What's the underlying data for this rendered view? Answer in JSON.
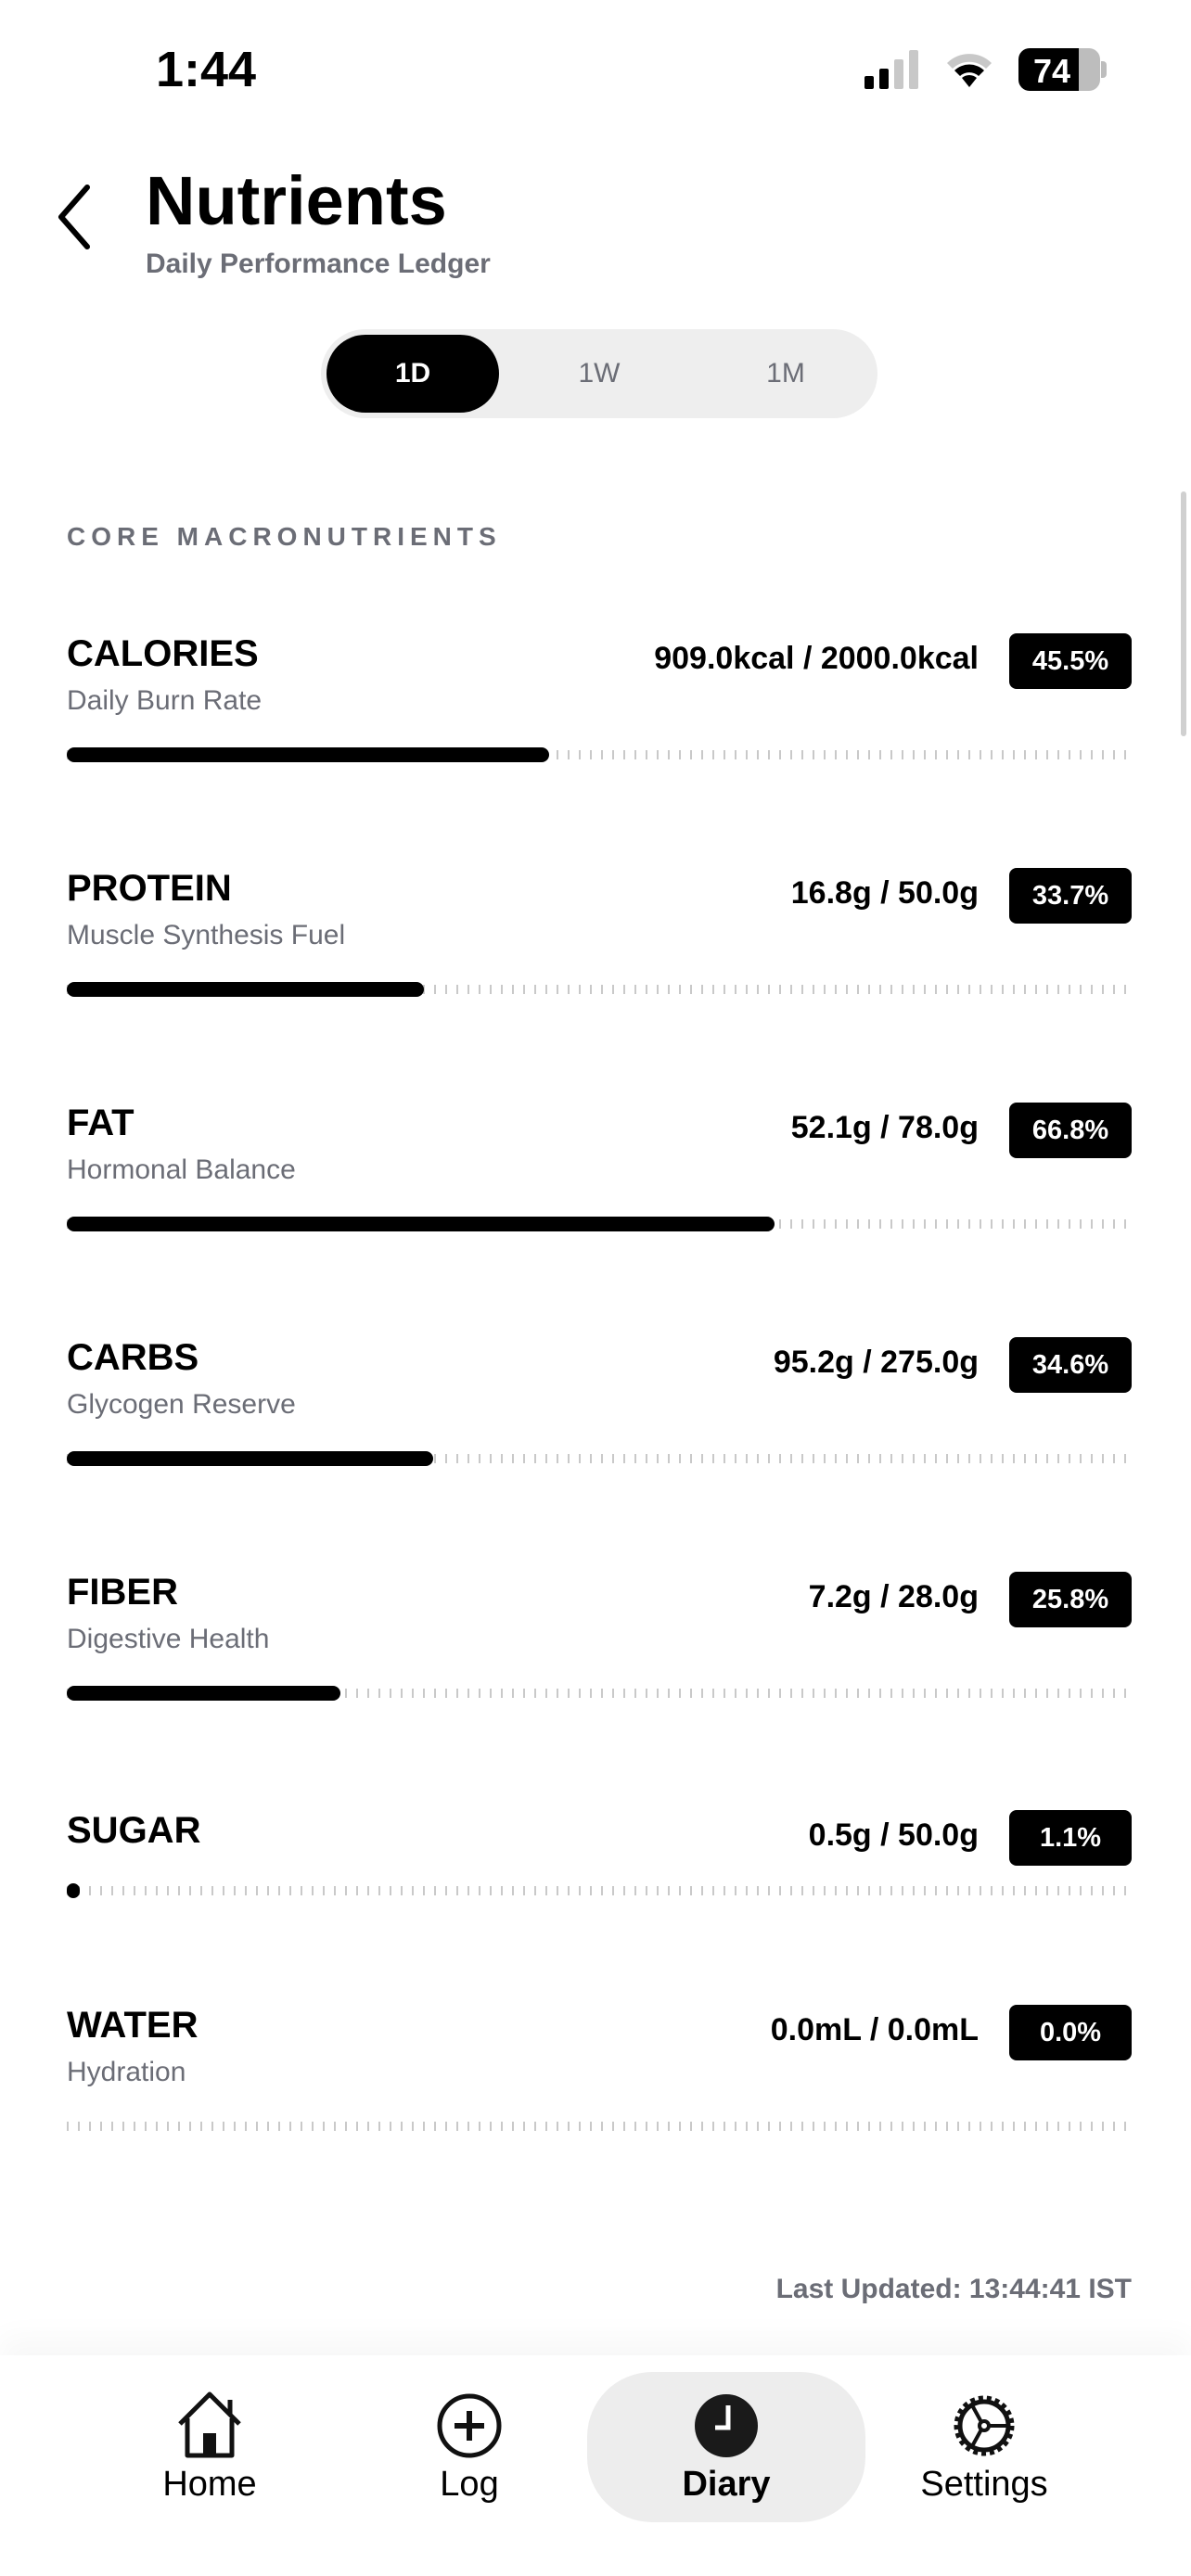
{
  "status_bar": {
    "time": "1:44",
    "battery": "74"
  },
  "header": {
    "title": "Nutrients",
    "subtitle": "Daily Performance Ledger"
  },
  "range_tabs": [
    {
      "label": "1D",
      "active": true
    },
    {
      "label": "1W",
      "active": false
    },
    {
      "label": "1M",
      "active": false
    }
  ],
  "section_title": "CORE MACRONUTRIENTS",
  "nutrients": [
    {
      "name": "CALORIES",
      "desc": "Daily Burn Rate",
      "value": "909.0kcal / 2000.0kcal",
      "percent_label": "45.5%",
      "percent": 45.5
    },
    {
      "name": "PROTEIN",
      "desc": "Muscle Synthesis Fuel",
      "value": "16.8g / 50.0g",
      "percent_label": "33.7%",
      "percent": 33.7
    },
    {
      "name": "FAT",
      "desc": "Hormonal Balance",
      "value": "52.1g / 78.0g",
      "percent_label": "66.8%",
      "percent": 66.8
    },
    {
      "name": "CARBS",
      "desc": "Glycogen Reserve",
      "value": "95.2g / 275.0g",
      "percent_label": "34.6%",
      "percent": 34.6
    },
    {
      "name": "FIBER",
      "desc": "Digestive Health",
      "value": "7.2g / 28.0g",
      "percent_label": "25.8%",
      "percent": 25.8
    },
    {
      "name": "SUGAR",
      "desc": "",
      "value": "0.5g / 50.0g",
      "percent_label": "1.1%",
      "percent": 1.1
    },
    {
      "name": "WATER",
      "desc": "Hydration",
      "value": "0.0mL / 0.0mL",
      "percent_label": "0.0%",
      "percent": 0
    }
  ],
  "last_updated": "Last Updated: 13:44:41 IST",
  "nav": [
    {
      "label": "Home",
      "icon": "home-icon",
      "active": false
    },
    {
      "label": "Log",
      "icon": "plus-circle-icon",
      "active": false
    },
    {
      "label": "Diary",
      "icon": "clock-icon",
      "active": true
    },
    {
      "label": "Settings",
      "icon": "gear-icon",
      "active": false
    }
  ]
}
